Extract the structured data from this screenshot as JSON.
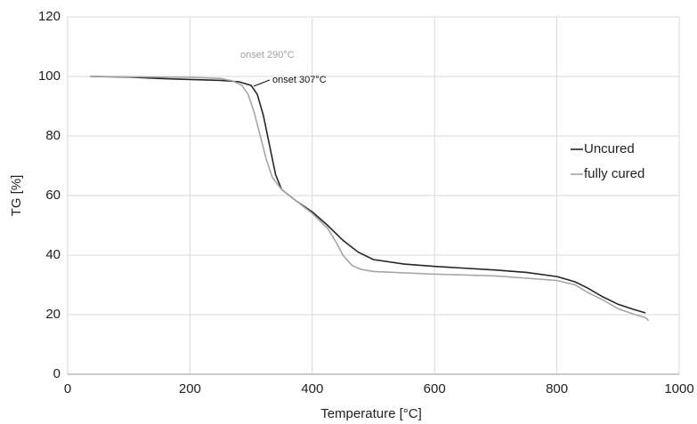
{
  "chart_data": {
    "type": "line",
    "x_label": "Temperature [°C]",
    "y_label": "TG [%]",
    "xlim": [
      0,
      1000
    ],
    "xticks": [
      0,
      200,
      400,
      600,
      800,
      1000
    ],
    "ylim": [
      0,
      120
    ],
    "yticks": [
      0,
      20,
      40,
      60,
      80,
      100,
      120
    ],
    "grid": true,
    "legend": "right",
    "annotations": [
      {
        "text": "onset 290°C",
        "color": "#a0a0a0"
      },
      {
        "text": "onset 307°C",
        "color": "#111111"
      }
    ],
    "series": [
      {
        "name": "Uncured",
        "color": "#262626",
        "x": [
          37,
          100,
          150,
          200,
          250,
          280,
          300,
          310,
          320,
          330,
          340,
          350,
          375,
          400,
          425,
          450,
          475,
          500,
          550,
          600,
          700,
          750,
          800,
          830,
          850,
          875,
          900,
          925,
          945
        ],
        "values": [
          100,
          99.8,
          99.3,
          99,
          98.7,
          98.2,
          97,
          94,
          87,
          77,
          67,
          62,
          58,
          54.5,
          50,
          45,
          41,
          38.5,
          37,
          36.2,
          35,
          34.2,
          32.8,
          31,
          29,
          26,
          23.5,
          21.8,
          20.6
        ]
      },
      {
        "name": "fully cured",
        "color": "#a6a6a6",
        "x": [
          37,
          100,
          200,
          250,
          270,
          285,
          295,
          305,
          315,
          325,
          335,
          350,
          375,
          400,
          425,
          440,
          450,
          465,
          480,
          500,
          600,
          700,
          800,
          830,
          850,
          875,
          900,
          925,
          945,
          950
        ],
        "values": [
          100,
          99.9,
          99.7,
          99.3,
          98.5,
          97,
          94,
          88,
          80,
          72,
          66,
          62,
          58,
          54,
          49,
          44,
          40,
          36.5,
          35.2,
          34.5,
          33.6,
          33,
          31.5,
          30,
          27.5,
          25,
          22,
          20.2,
          19,
          18
        ]
      }
    ]
  }
}
